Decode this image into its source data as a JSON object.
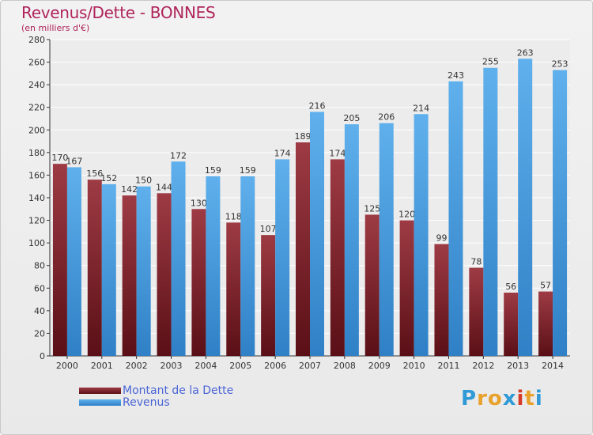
{
  "title": "Revenus/Dette - BONNES",
  "subtitle": "(en milliers d'€)",
  "logo": "Proxiti",
  "colors": {
    "debt": "#7a1f2a",
    "debt_top": "#9e3b44",
    "revenue": "#4ea3e3",
    "revenue_top": "#5aaeea",
    "title": "#b0245b",
    "legend_text": "#4a64d6"
  },
  "chart_data": {
    "type": "bar",
    "categories": [
      "2000",
      "2001",
      "2002",
      "2003",
      "2004",
      "2005",
      "2006",
      "2007",
      "2008",
      "2009",
      "2010",
      "2011",
      "2012",
      "2013",
      "2014"
    ],
    "series": [
      {
        "name": "Montant de la Dette",
        "values": [
          170,
          156,
          142,
          144,
          130,
          118,
          107,
          189,
          174,
          125,
          120,
          99,
          78,
          56,
          57
        ]
      },
      {
        "name": "Revenus",
        "values": [
          167,
          152,
          150,
          172,
          159,
          159,
          174,
          216,
          205,
          206,
          214,
          243,
          255,
          263,
          253
        ]
      }
    ],
    "ylim": [
      0,
      280
    ],
    "yticks": [
      0,
      20,
      40,
      60,
      80,
      100,
      120,
      140,
      160,
      180,
      200,
      220,
      240,
      260,
      280
    ],
    "grid": true,
    "legend": "bottom-left"
  }
}
